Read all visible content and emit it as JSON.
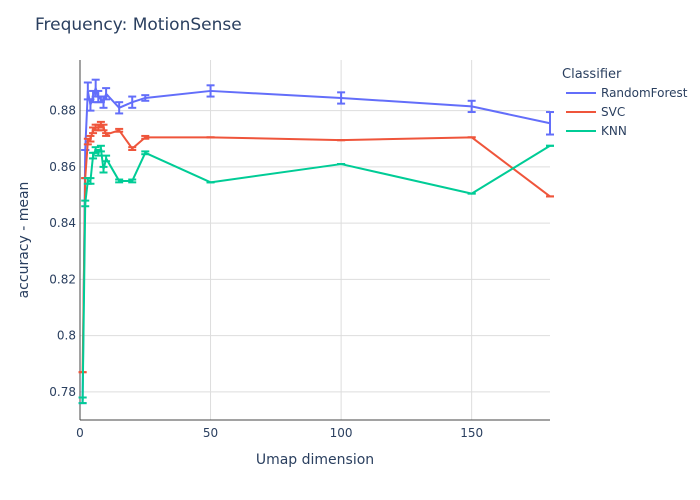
{
  "chart_data": {
    "type": "line",
    "title": "Frequency: MotionSense",
    "xlabel": "Umap dimension",
    "ylabel": "accuracy - mean",
    "xlim": [
      0,
      180
    ],
    "ylim": [
      0.77,
      0.898
    ],
    "x_ticks": [
      {
        "value": 0,
        "label": "0"
      },
      {
        "value": 50,
        "label": "50"
      },
      {
        "value": 100,
        "label": "100"
      },
      {
        "value": 150,
        "label": "150"
      }
    ],
    "y_ticks": [
      {
        "value": 0.78,
        "label": "0.78"
      },
      {
        "value": 0.8,
        "label": "0.8"
      },
      {
        "value": 0.82,
        "label": "0.82"
      },
      {
        "value": 0.84,
        "label": "0.84"
      },
      {
        "value": 0.86,
        "label": "0.86"
      },
      {
        "value": 0.88,
        "label": "0.88"
      }
    ],
    "grid": true,
    "legend_title": "Classifier",
    "legend_position": "top-right",
    "series": [
      {
        "name": "RandomForest",
        "color": "#636efa",
        "points": [
          {
            "x": 1,
            "y": 0.777,
            "err": 0.001
          },
          {
            "x": 2,
            "y": 0.866,
            "err": 0.0
          },
          {
            "x": 3,
            "y": 0.887,
            "err": 0.003
          },
          {
            "x": 4,
            "y": 0.882,
            "err": 0.002
          },
          {
            "x": 5,
            "y": 0.885,
            "err": 0.002
          },
          {
            "x": 6,
            "y": 0.888,
            "err": 0.003
          },
          {
            "x": 7,
            "y": 0.885,
            "err": 0.002
          },
          {
            "x": 8,
            "y": 0.884,
            "err": 0.001
          },
          {
            "x": 9,
            "y": 0.883,
            "err": 0.002
          },
          {
            "x": 10,
            "y": 0.886,
            "err": 0.002
          },
          {
            "x": 15,
            "y": 0.881,
            "err": 0.002
          },
          {
            "x": 20,
            "y": 0.883,
            "err": 0.002
          },
          {
            "x": 25,
            "y": 0.8845,
            "err": 0.001
          },
          {
            "x": 50,
            "y": 0.887,
            "err": 0.002
          },
          {
            "x": 100,
            "y": 0.8845,
            "err": 0.002
          },
          {
            "x": 150,
            "y": 0.8815,
            "err": 0.002
          },
          {
            "x": 180,
            "y": 0.8755,
            "err": 0.004
          }
        ]
      },
      {
        "name": "SVC",
        "color": "#ef553b",
        "points": [
          {
            "x": 1,
            "y": 0.787,
            "err": 0
          },
          {
            "x": 2,
            "y": 0.856,
            "err": 0
          },
          {
            "x": 3,
            "y": 0.869,
            "err": 0.001
          },
          {
            "x": 4,
            "y": 0.87,
            "err": 0.001
          },
          {
            "x": 5,
            "y": 0.873,
            "err": 0.001
          },
          {
            "x": 6,
            "y": 0.874,
            "err": 0.001
          },
          {
            "x": 7,
            "y": 0.874,
            "err": 0.001
          },
          {
            "x": 8,
            "y": 0.875,
            "err": 0.001
          },
          {
            "x": 9,
            "y": 0.874,
            "err": 0.001
          },
          {
            "x": 10,
            "y": 0.8715,
            "err": 0.0005
          },
          {
            "x": 15,
            "y": 0.873,
            "err": 0.0005
          },
          {
            "x": 20,
            "y": 0.8665,
            "err": 0.0005
          },
          {
            "x": 25,
            "y": 0.8705,
            "err": 0.0005
          },
          {
            "x": 50,
            "y": 0.8705,
            "err": 0
          },
          {
            "x": 100,
            "y": 0.8695,
            "err": 0
          },
          {
            "x": 150,
            "y": 0.8705,
            "err": 0
          },
          {
            "x": 180,
            "y": 0.8495,
            "err": 0
          }
        ]
      },
      {
        "name": "KNN",
        "color": "#00cc96",
        "points": [
          {
            "x": 1,
            "y": 0.777,
            "err": 0.001
          },
          {
            "x": 2,
            "y": 0.847,
            "err": 0.001
          },
          {
            "x": 3,
            "y": 0.855,
            "err": 0.001
          },
          {
            "x": 4,
            "y": 0.855,
            "err": 0.001
          },
          {
            "x": 5,
            "y": 0.864,
            "err": 0.001
          },
          {
            "x": 6,
            "y": 0.866,
            "err": 0.001
          },
          {
            "x": 7,
            "y": 0.865,
            "err": 0.001
          },
          {
            "x": 8,
            "y": 0.8665,
            "err": 0.001
          },
          {
            "x": 9,
            "y": 0.859,
            "err": 0.001
          },
          {
            "x": 10,
            "y": 0.863,
            "err": 0.001
          },
          {
            "x": 15,
            "y": 0.855,
            "err": 0.0005
          },
          {
            "x": 20,
            "y": 0.855,
            "err": 0.0005
          },
          {
            "x": 25,
            "y": 0.865,
            "err": 0.0005
          },
          {
            "x": 50,
            "y": 0.8545,
            "err": 0
          },
          {
            "x": 100,
            "y": 0.861,
            "err": 0
          },
          {
            "x": 150,
            "y": 0.8505,
            "err": 0
          },
          {
            "x": 180,
            "y": 0.8675,
            "err": 0
          }
        ]
      }
    ]
  }
}
